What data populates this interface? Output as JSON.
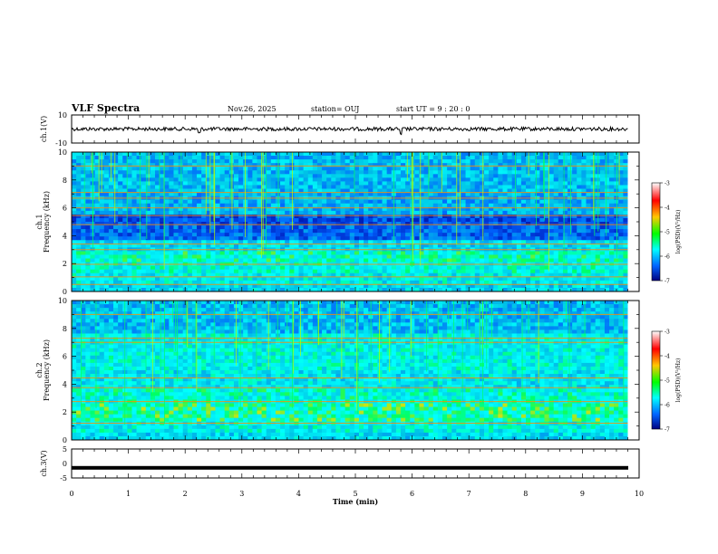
{
  "header": {
    "title": "VLF Spectra",
    "date": "Nov.26, 2025",
    "station": "station= OUJ",
    "start": "start  UT =  9 : 20 : 0"
  },
  "colorbar": {
    "label": "log(PSD)(V²/Hz)",
    "ticks": [
      "-3",
      "-4",
      "-5",
      "-6",
      "-7"
    ],
    "colors": [
      "#ffffff",
      "#ff0000",
      "#ffc800",
      "#00ff00",
      "#00ffff",
      "#0064ff",
      "#000080"
    ]
  },
  "chart_data": [
    {
      "type": "line",
      "name": "ch1-waveform",
      "ylabel": "ch.1(V)",
      "ylim": [
        -10,
        10
      ],
      "yticks": [
        "10",
        "-10"
      ],
      "xlim": [
        0,
        10
      ],
      "baseline": 0,
      "spikes": [
        {
          "x": 2.25,
          "y": -2
        },
        {
          "x": 5.8,
          "y": -3
        }
      ]
    },
    {
      "type": "heatmap",
      "name": "ch1-spectrogram",
      "ylabel": "ch.1\nFrequency (kHz)",
      "ylim": [
        0,
        10
      ],
      "yticks": [
        "0",
        "2",
        "4",
        "6",
        "8",
        "10"
      ],
      "xlim": [
        0,
        10
      ],
      "zlim": [
        -7,
        -3
      ],
      "bands": [
        {
          "f0": 0,
          "f1": 0.4,
          "level": 0.55
        },
        {
          "f0": 0.4,
          "f1": 1.2,
          "level": 0.6
        },
        {
          "f0": 1.2,
          "f1": 2.0,
          "level": 0.65
        },
        {
          "f0": 2.0,
          "f1": 3.0,
          "level": 0.68
        },
        {
          "f0": 3.0,
          "f1": 3.6,
          "level": 0.55
        },
        {
          "f0": 3.6,
          "f1": 4.8,
          "level": 0.3
        },
        {
          "f0": 4.8,
          "f1": 5.6,
          "level": 0.25
        },
        {
          "f0": 5.6,
          "f1": 7.0,
          "level": 0.45
        },
        {
          "f0": 7.0,
          "f1": 10.0,
          "level": 0.48
        }
      ],
      "lines_khz": [
        0.5,
        1.05,
        1.95,
        3.0,
        3.4,
        4.8,
        5.45,
        6.0,
        6.7,
        7.1,
        9.0
      ]
    },
    {
      "type": "heatmap",
      "name": "ch2-spectrogram",
      "ylabel": "ch.2\nFrequency (kHz)",
      "ylim": [
        0,
        10
      ],
      "yticks": [
        "0",
        "2",
        "4",
        "6",
        "8",
        "10"
      ],
      "xlim": [
        0,
        10
      ],
      "zlim": [
        -7,
        -3
      ],
      "bands": [
        {
          "f0": 0,
          "f1": 0.5,
          "level": 0.55
        },
        {
          "f0": 0.5,
          "f1": 1.2,
          "level": 0.62
        },
        {
          "f0": 1.2,
          "f1": 2.6,
          "level": 0.72
        },
        {
          "f0": 2.6,
          "f1": 3.6,
          "level": 0.66
        },
        {
          "f0": 3.6,
          "f1": 5.0,
          "level": 0.58
        },
        {
          "f0": 5.0,
          "f1": 7.5,
          "level": 0.62
        },
        {
          "f0": 7.5,
          "f1": 10.0,
          "level": 0.48
        }
      ],
      "lines_khz": [
        1.2,
        2.75,
        3.75,
        4.45,
        7.0,
        7.3,
        9.0
      ]
    },
    {
      "type": "line",
      "name": "ch3-waveform",
      "ylabel": "ch.3(V)",
      "ylim": [
        -5,
        5
      ],
      "yticks": [
        "5",
        "0",
        "-5"
      ],
      "xlim": [
        0,
        10
      ],
      "baseline": -1.5
    }
  ],
  "xaxis": {
    "label": "Time (min)",
    "ticks": [
      "0",
      "1",
      "2",
      "3",
      "4",
      "5",
      "6",
      "7",
      "8",
      "9",
      "10"
    ]
  }
}
